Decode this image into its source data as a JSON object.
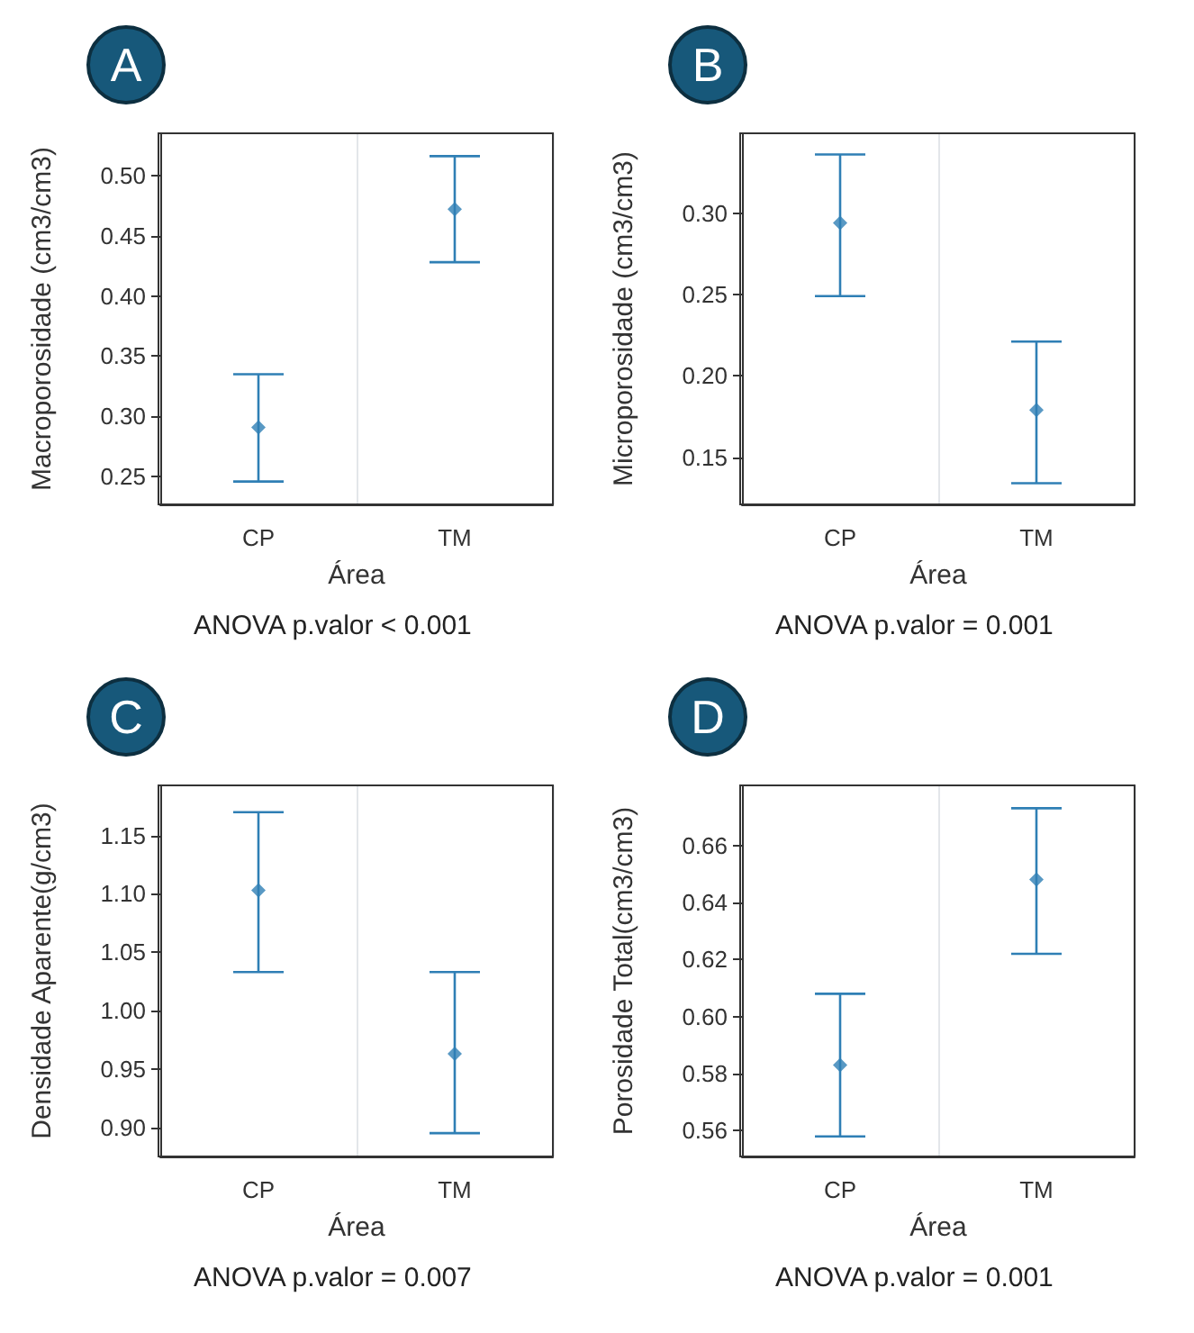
{
  "chart_data": [
    {
      "type": "scatter",
      "title": "A",
      "xlabel": "Área",
      "ylabel": "Macroporosidade (cm3/cm3)",
      "annotations": [
        "ANOVA p.valor < 0.001"
      ],
      "categories": [
        "CP",
        "TM"
      ],
      "series": [
        {
          "color": "#2f7fb5",
          "values": [
            0.291,
            0.472
          ],
          "errors": [
            [
              0.246,
              0.335
            ],
            [
              0.428,
              0.516
            ]
          ]
        }
      ],
      "ylim": [
        0.227,
        0.535
      ],
      "yticks": [
        {
          "value": 0.25,
          "label": "0.25"
        },
        {
          "value": 0.3,
          "label": "0.30"
        },
        {
          "value": 0.35,
          "label": "0.35"
        },
        {
          "value": 0.4,
          "label": "0.40"
        },
        {
          "value": 0.45,
          "label": "0.45"
        },
        {
          "value": 0.5,
          "label": "0.50"
        }
      ],
      "grid": "x",
      "marker": "diamond"
    },
    {
      "type": "scatter",
      "title": "B",
      "xlabel": "Área",
      "ylabel": "Microporosidade (cm3/cm3)",
      "annotations": [
        "ANOVA p.valor = 0.001"
      ],
      "categories": [
        "CP",
        "TM"
      ],
      "series": [
        {
          "color": "#2f7fb5",
          "values": [
            0.294,
            0.179
          ],
          "errors": [
            [
              0.249,
              0.336
            ],
            [
              0.134,
              0.221
            ]
          ]
        }
      ],
      "ylim": [
        0.121,
        0.349
      ],
      "yticks": [
        {
          "value": 0.15,
          "label": "0.15"
        },
        {
          "value": 0.2,
          "label": "0.20"
        },
        {
          "value": 0.25,
          "label": "0.25"
        },
        {
          "value": 0.3,
          "label": "0.30"
        }
      ],
      "grid": "x",
      "marker": "diamond"
    },
    {
      "type": "scatter",
      "title": "C",
      "xlabel": "Área",
      "ylabel": "Densidade Aparente(g/cm3)",
      "annotations": [
        "ANOVA p.valor = 0.007"
      ],
      "categories": [
        "CP",
        "TM"
      ],
      "series": [
        {
          "color": "#2f7fb5",
          "values": [
            1.103,
            0.963
          ],
          "errors": [
            [
              1.033,
              1.17
            ],
            [
              0.895,
              1.033
            ]
          ]
        }
      ],
      "ylim": [
        0.875,
        1.193
      ],
      "yticks": [
        {
          "value": 0.9,
          "label": "0.90"
        },
        {
          "value": 0.95,
          "label": "0.95"
        },
        {
          "value": 1.0,
          "label": "1.00"
        },
        {
          "value": 1.05,
          "label": "1.05"
        },
        {
          "value": 1.1,
          "label": "1.10"
        },
        {
          "value": 1.15,
          "label": "1.15"
        }
      ],
      "grid": "x",
      "marker": "diamond"
    },
    {
      "type": "scatter",
      "title": "D",
      "xlabel": "Área",
      "ylabel": "Porosidade Total(cm3/cm3)",
      "annotations": [
        "ANOVA p.valor = 0.001"
      ],
      "categories": [
        "CP",
        "TM"
      ],
      "series": [
        {
          "color": "#2f7fb5",
          "values": [
            0.583,
            0.648
          ],
          "errors": [
            [
              0.558,
              0.608
            ],
            [
              0.622,
              0.673
            ]
          ]
        }
      ],
      "ylim": [
        0.551,
        0.681
      ],
      "yticks": [
        {
          "value": 0.56,
          "label": "0.56"
        },
        {
          "value": 0.58,
          "label": "0.58"
        },
        {
          "value": 0.6,
          "label": "0.60"
        },
        {
          "value": 0.62,
          "label": "0.62"
        },
        {
          "value": 0.64,
          "label": "0.64"
        },
        {
          "value": 0.66,
          "label": "0.66"
        }
      ],
      "grid": "x",
      "marker": "diamond"
    }
  ]
}
